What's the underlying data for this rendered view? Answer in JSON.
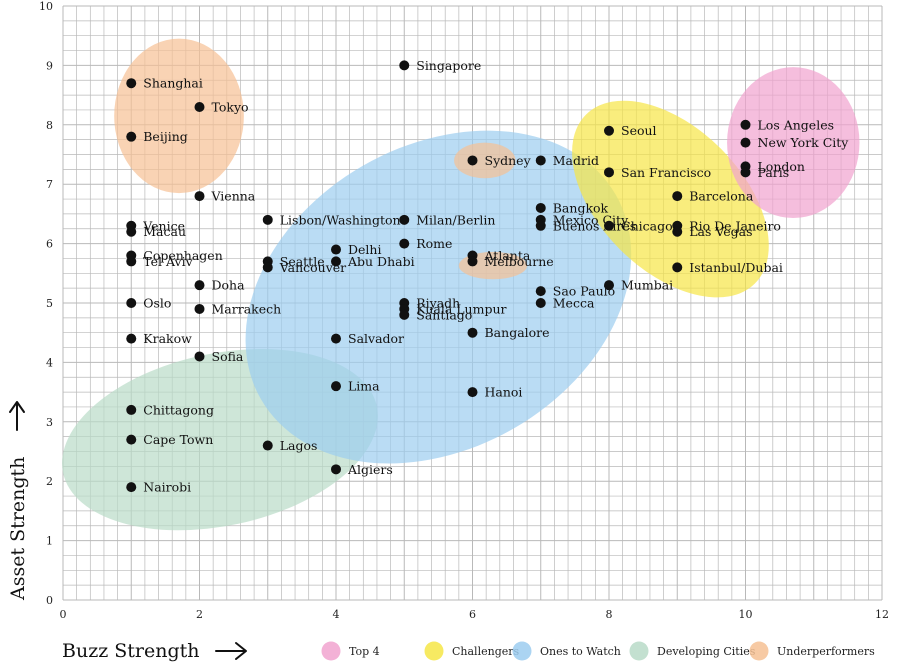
{
  "chart_data": {
    "type": "scatter",
    "title": "",
    "xlabel": "Buzz Strength",
    "ylabel": "Asset Strength",
    "xlim": [
      0,
      12
    ],
    "ylim": [
      0,
      10
    ],
    "xticks": [
      0,
      2,
      4,
      6,
      8,
      10,
      12
    ],
    "yticks": [
      0,
      1,
      2,
      3,
      4,
      5,
      6,
      7,
      8,
      9,
      10
    ],
    "grid": true,
    "colors": {
      "point": "#111111",
      "grid": "#b9b9b9",
      "top4": "#f1a3cf",
      "challengers": "#f6e646",
      "ones_to_watch": "#9ccdf0",
      "developing": "#b9dbc8",
      "underperformers": "#f6c194"
    },
    "legend": [
      {
        "key": "top4",
        "label": "Top 4"
      },
      {
        "key": "challengers",
        "label": "Challengers"
      },
      {
        "key": "ones_to_watch",
        "label": "Ones to Watch"
      },
      {
        "key": "developing",
        "label": "Developing Cities"
      },
      {
        "key": "underperformers",
        "label": "Underperformers"
      }
    ],
    "clusters": [
      {
        "key": "developing",
        "label": "Developing Cities",
        "cx": 2.3,
        "cy": 2.7,
        "rx": 2.35,
        "ry": 1.45,
        "angle": 12
      },
      {
        "key": "ones_to_watch",
        "label": "Ones to Watch",
        "cx": 5.5,
        "cy": 5.1,
        "rx": 3.0,
        "ry": 2.55,
        "angle": 30
      },
      {
        "key": "challengers",
        "label": "Challengers",
        "cx": 8.9,
        "cy": 6.75,
        "rx": 1.75,
        "ry": 1.2,
        "angle": -45
      },
      {
        "key": "top4",
        "label": "Top 4",
        "cx": 10.7,
        "cy": 7.7,
        "rx": 0.97,
        "ry": 1.27,
        "angle": 0
      },
      {
        "key": "underperformers",
        "label": "Underperformers",
        "cx": 1.7,
        "cy": 8.15,
        "rx": 0.95,
        "ry": 1.3,
        "angle": 0
      },
      {
        "key": "underperformers",
        "label": "Underperformers",
        "cx": 6.18,
        "cy": 7.4,
        "rx": 0.45,
        "ry": 0.3,
        "angle": 0
      },
      {
        "key": "underperformers",
        "label": "Underperformers",
        "cx": 6.3,
        "cy": 5.63,
        "rx": 0.5,
        "ry": 0.23,
        "angle": 0
      }
    ],
    "points": [
      {
        "name": "Shanghai",
        "x": 1,
        "y": 8.7
      },
      {
        "name": "Tokyo",
        "x": 2,
        "y": 8.3
      },
      {
        "name": "Beijing",
        "x": 1,
        "y": 7.8
      },
      {
        "name": "Vienna",
        "x": 2,
        "y": 6.8
      },
      {
        "name": "Venice",
        "x": 1,
        "y": 6.3
      },
      {
        "name": "Macau",
        "x": 1,
        "y": 6.2
      },
      {
        "name": "Copenhagen",
        "x": 1,
        "y": 5.8
      },
      {
        "name": "Tel Aviv",
        "x": 1,
        "y": 5.7
      },
      {
        "name": "Doha",
        "x": 2,
        "y": 5.3
      },
      {
        "name": "Oslo",
        "x": 1,
        "y": 5.0
      },
      {
        "name": "Marrakech",
        "x": 2,
        "y": 4.9
      },
      {
        "name": "Krakow",
        "x": 1,
        "y": 4.4
      },
      {
        "name": "Sofia",
        "x": 2,
        "y": 4.1
      },
      {
        "name": "Chittagong",
        "x": 1,
        "y": 3.2
      },
      {
        "name": "Cape Town",
        "x": 1,
        "y": 2.7
      },
      {
        "name": "Nairobi",
        "x": 1,
        "y": 1.9
      },
      {
        "name": "Lisbon/Washington",
        "x": 3,
        "y": 6.4
      },
      {
        "name": "Seattle",
        "x": 3,
        "y": 5.7
      },
      {
        "name": "Vancouver",
        "x": 3,
        "y": 5.6
      },
      {
        "name": "Lagos",
        "x": 3,
        "y": 2.6
      },
      {
        "name": "Delhi",
        "x": 4,
        "y": 5.9
      },
      {
        "name": "Abu Dhabi",
        "x": 4,
        "y": 5.7
      },
      {
        "name": "Salvador",
        "x": 4,
        "y": 4.4
      },
      {
        "name": "Lima",
        "x": 4,
        "y": 3.6
      },
      {
        "name": "Algiers",
        "x": 4,
        "y": 2.2
      },
      {
        "name": "Singapore",
        "x": 5,
        "y": 9.0
      },
      {
        "name": "Milan/Berlin",
        "x": 5,
        "y": 6.4
      },
      {
        "name": "Rome",
        "x": 5,
        "y": 6.0
      },
      {
        "name": "Riyadh",
        "x": 5,
        "y": 5.0
      },
      {
        "name": "Kuala Lumpur",
        "x": 5,
        "y": 4.9
      },
      {
        "name": "Santiago",
        "x": 5,
        "y": 4.8
      },
      {
        "name": "Sydney",
        "x": 6,
        "y": 7.4
      },
      {
        "name": "Atlanta",
        "x": 6,
        "y": 5.8
      },
      {
        "name": "Melbourne",
        "x": 6,
        "y": 5.7
      },
      {
        "name": "Bangalore",
        "x": 6,
        "y": 4.5
      },
      {
        "name": "Hanoi",
        "x": 6,
        "y": 3.5
      },
      {
        "name": "Madrid",
        "x": 7,
        "y": 7.4
      },
      {
        "name": "Bangkok",
        "x": 7,
        "y": 6.6
      },
      {
        "name": "Mexico City",
        "x": 7,
        "y": 6.4
      },
      {
        "name": "Buenos Aires",
        "x": 7,
        "y": 6.3
      },
      {
        "name": "Sao Paulo",
        "x": 7,
        "y": 5.2
      },
      {
        "name": "Mecca",
        "x": 7,
        "y": 5.0
      },
      {
        "name": "Seoul",
        "x": 8,
        "y": 7.9
      },
      {
        "name": "San Francisco",
        "x": 8,
        "y": 7.2
      },
      {
        "name": "Chicago",
        "x": 8,
        "y": 6.3
      },
      {
        "name": "Mumbai",
        "x": 8,
        "y": 5.3
      },
      {
        "name": "Barcelona",
        "x": 9,
        "y": 6.8
      },
      {
        "name": "Rio De Janeiro",
        "x": 9,
        "y": 6.3
      },
      {
        "name": "Las Vegas",
        "x": 9,
        "y": 6.2
      },
      {
        "name": "Istanbul/Dubai",
        "x": 9,
        "y": 5.6
      },
      {
        "name": "Los Angeles",
        "x": 10,
        "y": 8.0
      },
      {
        "name": "New York City",
        "x": 10,
        "y": 7.7
      },
      {
        "name": "London",
        "x": 10,
        "y": 7.3
      },
      {
        "name": "Paris",
        "x": 10,
        "y": 7.2
      }
    ]
  }
}
